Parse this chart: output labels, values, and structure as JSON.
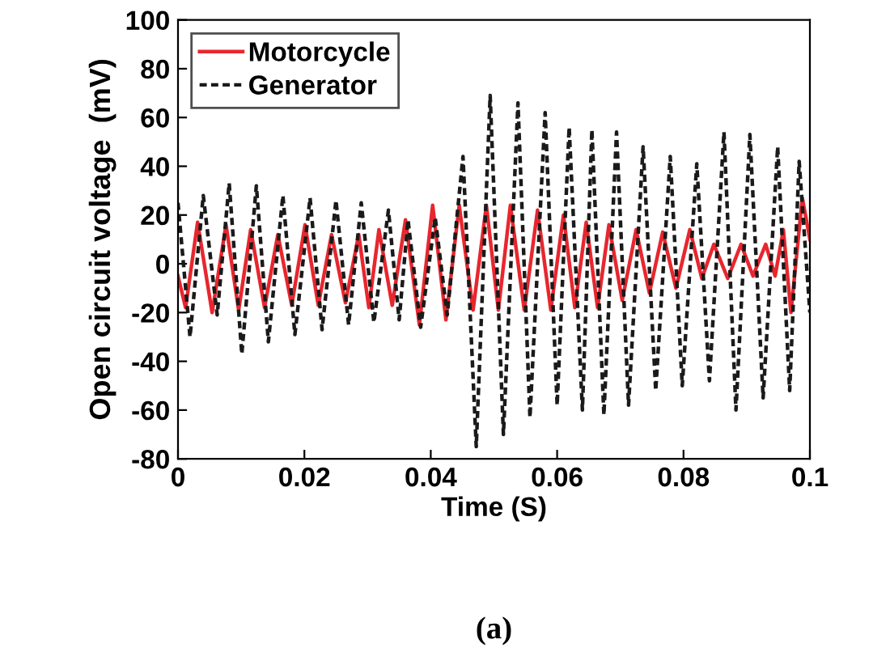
{
  "chart_data": {
    "type": "line",
    "xlabel": "Time (S)",
    "ylabel": "Open circuit voltage  (mV)",
    "annotations": [
      "(a)"
    ],
    "xlim": [
      0,
      0.1
    ],
    "ylim": [
      -80,
      100
    ],
    "xticks": [
      0,
      0.02,
      0.04,
      0.06,
      0.08,
      0.1
    ],
    "yticks": [
      -80,
      -60,
      -40,
      -20,
      0,
      20,
      40,
      60,
      80,
      100
    ],
    "grid": false,
    "legend": "top left",
    "series": [
      {
        "name": "Motorcycle",
        "color": "#e8262e",
        "line_style": "solid",
        "x": [
          0,
          0.0012,
          0.0031,
          0.0054,
          0.0076,
          0.0096,
          0.0115,
          0.0137,
          0.0158,
          0.018,
          0.0201,
          0.0222,
          0.0243,
          0.0265,
          0.0286,
          0.0302,
          0.0318,
          0.0339,
          0.036,
          0.0382,
          0.0403,
          0.0424,
          0.0445,
          0.0467,
          0.0488,
          0.0507,
          0.0526,
          0.0548,
          0.0569,
          0.059,
          0.061,
          0.0628,
          0.0646,
          0.0664,
          0.0682,
          0.0703,
          0.0725,
          0.0746,
          0.0767,
          0.0788,
          0.081,
          0.0829,
          0.0848,
          0.087,
          0.0891,
          0.091,
          0.093,
          0.0945,
          0.0958,
          0.097,
          0.0988,
          0.1
        ],
        "values": [
          -5,
          -18,
          17,
          -20,
          16,
          -19,
          14,
          -18,
          12,
          -17,
          16,
          -17,
          12,
          -16,
          12,
          -18,
          14,
          -17,
          18,
          -25,
          24,
          -23,
          24,
          -19,
          24,
          -19,
          24,
          -19,
          22,
          -19,
          20,
          -18,
          17,
          -18,
          16,
          -15,
          14,
          -12,
          13,
          -10,
          14,
          -6,
          8,
          -6,
          8,
          -5,
          8,
          -5,
          14,
          -20,
          27,
          10
        ]
      },
      {
        "name": "Generator",
        "color": "#1a1a1a",
        "line_style": "dashed",
        "x": [
          0,
          0.0019,
          0.004,
          0.0062,
          0.0081,
          0.0101,
          0.0124,
          0.0143,
          0.0166,
          0.0185,
          0.0209,
          0.0228,
          0.025,
          0.027,
          0.029,
          0.031,
          0.0333,
          0.035,
          0.0364,
          0.0384,
          0.0407,
          0.0426,
          0.0451,
          0.0472,
          0.0494,
          0.0515,
          0.0538,
          0.0557,
          0.0581,
          0.06,
          0.0619,
          0.064,
          0.0655,
          0.0674,
          0.0694,
          0.0713,
          0.0736,
          0.0756,
          0.0779,
          0.0798,
          0.0821,
          0.0841,
          0.0864,
          0.0883,
          0.0905,
          0.0926,
          0.0949,
          0.0968,
          0.0983,
          0.1
        ],
        "values": [
          25,
          -30,
          28,
          -21,
          33,
          -37,
          32,
          -32,
          28,
          -29,
          27,
          -27,
          26,
          -25,
          25,
          -24,
          22,
          -23,
          18,
          -26,
          19,
          -21,
          44,
          -75,
          69,
          -70,
          66,
          -63,
          62,
          -58,
          56,
          -60,
          55,
          -62,
          54,
          -58,
          48,
          -52,
          44,
          -50,
          41,
          -48,
          54,
          -60,
          53,
          -55,
          48,
          -52,
          42,
          -20
        ]
      }
    ]
  }
}
